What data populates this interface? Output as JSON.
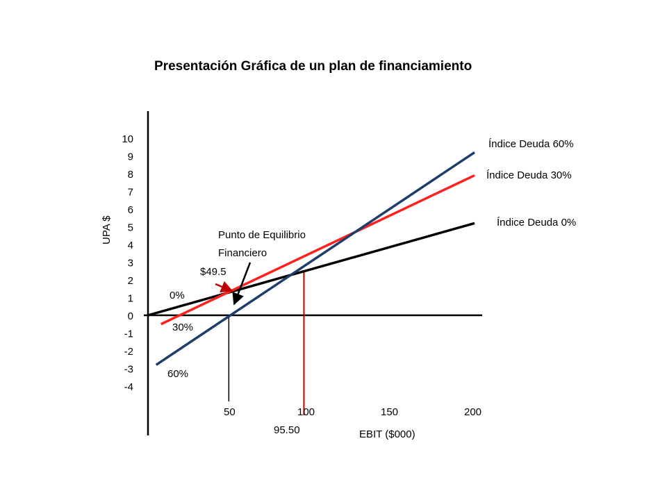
{
  "chart_data": {
    "type": "line",
    "title": "Presentación Gráfica de un plan de financiamiento",
    "xlabel": "EBIT ($000)",
    "ylabel": "UPA $",
    "xlim": [
      0,
      200
    ],
    "ylim": [
      -4,
      10
    ],
    "x_ticks": [
      "50",
      "100",
      "150",
      "200"
    ],
    "y_ticks": [
      "10",
      "9",
      "8",
      "7",
      "6",
      "5",
      "4",
      "3",
      "2",
      "1",
      "0",
      "-1",
      "-2",
      "-3",
      "-4"
    ],
    "grid": false,
    "series": [
      {
        "name": "Índice Deuda 0%",
        "short_label": "0%",
        "color": "#000000",
        "x": [
          0,
          200
        ],
        "y": [
          0,
          5.2
        ]
      },
      {
        "name": "Índice Deuda 30%",
        "short_label": "30%",
        "color": "#ff2020",
        "x": [
          8,
          200
        ],
        "y": [
          -0.5,
          7.9
        ]
      },
      {
        "name": "Índice Deuda 60%",
        "short_label": "60%",
        "color": "#1f3d6b",
        "x": [
          5,
          200
        ],
        "y": [
          -2.8,
          9.2
        ]
      }
    ],
    "annotations": {
      "equilibrium_label_line1": "Punto de Equilibrio",
      "equilibrium_label_line2": "Financiero",
      "point_label": "$49.5",
      "point_x": 49.5,
      "marker_x_value": 95.5,
      "marker_label": "95.50"
    }
  }
}
